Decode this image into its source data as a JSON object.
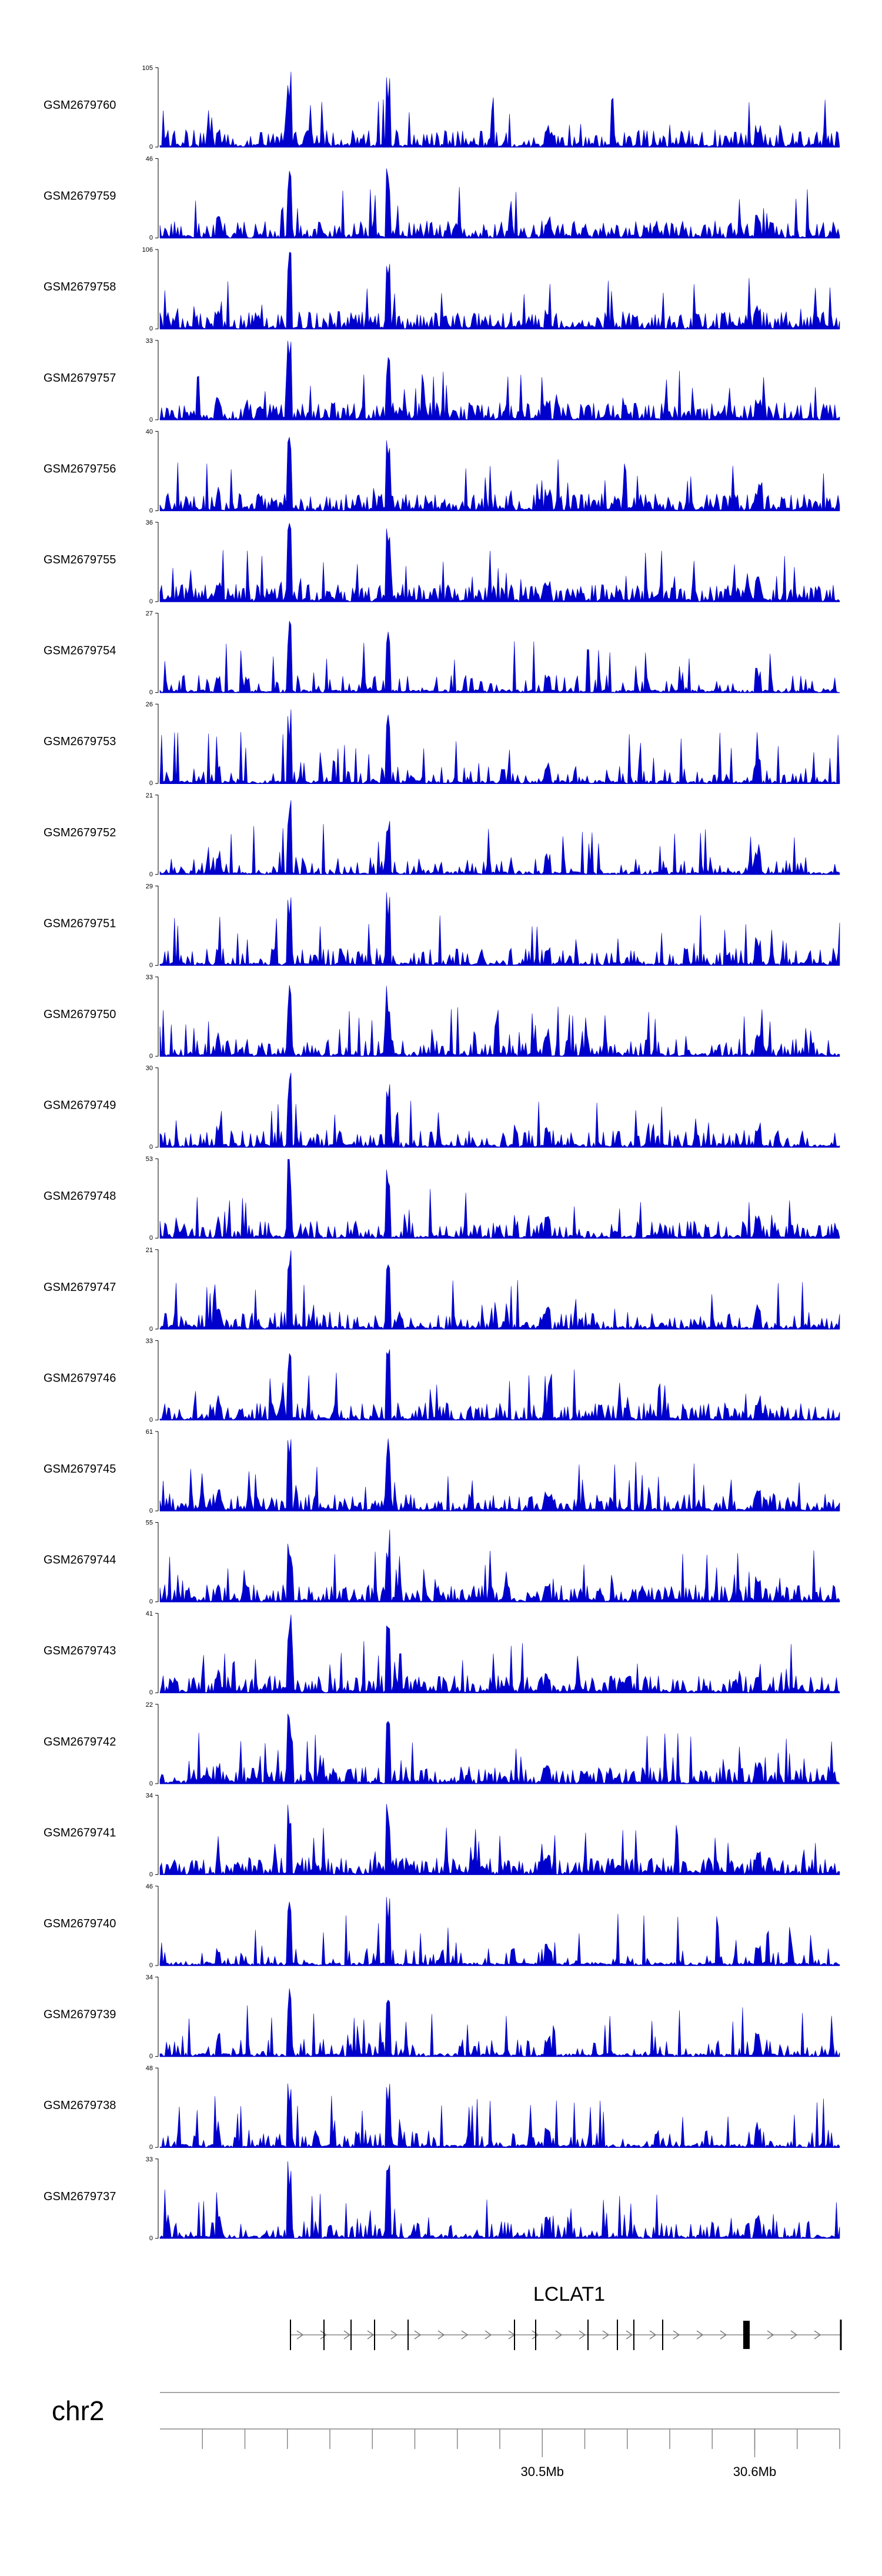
{
  "chart_data": {
    "type": "area",
    "tracks": [
      {
        "name": "GSM2679760",
        "ymax": "105",
        "ymin": "0"
      },
      {
        "name": "GSM2679759",
        "ymax": "46",
        "ymin": "0"
      },
      {
        "name": "GSM2679758",
        "ymax": "106",
        "ymin": "0"
      },
      {
        "name": "GSM2679757",
        "ymax": "33",
        "ymin": "0"
      },
      {
        "name": "GSM2679756",
        "ymax": "40",
        "ymin": "0"
      },
      {
        "name": "GSM2679755",
        "ymax": "36",
        "ymin": "0"
      },
      {
        "name": "GSM2679754",
        "ymax": "27",
        "ymin": "0"
      },
      {
        "name": "GSM2679753",
        "ymax": "26",
        "ymin": "0"
      },
      {
        "name": "GSM2679752",
        "ymax": "21",
        "ymin": "0"
      },
      {
        "name": "GSM2679751",
        "ymax": "29",
        "ymin": "0"
      },
      {
        "name": "GSM2679750",
        "ymax": "33",
        "ymin": "0"
      },
      {
        "name": "GSM2679749",
        "ymax": "30",
        "ymin": "0"
      },
      {
        "name": "GSM2679748",
        "ymax": "53",
        "ymin": "0"
      },
      {
        "name": "GSM2679747",
        "ymax": "21",
        "ymin": "0"
      },
      {
        "name": "GSM2679746",
        "ymax": "33",
        "ymin": "0"
      },
      {
        "name": "GSM2679745",
        "ymax": "61",
        "ymin": "0"
      },
      {
        "name": "GSM2679744",
        "ymax": "55",
        "ymin": "0"
      },
      {
        "name": "GSM2679743",
        "ymax": "41",
        "ymin": "0"
      },
      {
        "name": "GSM2679742",
        "ymax": "22",
        "ymin": "0"
      },
      {
        "name": "GSM2679741",
        "ymax": "34",
        "ymin": "0"
      },
      {
        "name": "GSM2679740",
        "ymax": "46",
        "ymin": "0"
      },
      {
        "name": "GSM2679739",
        "ymax": "34",
        "ymin": "0"
      },
      {
        "name": "GSM2679738",
        "ymax": "48",
        "ymin": "0"
      },
      {
        "name": "GSM2679737",
        "ymax": "33",
        "ymin": "0"
      }
    ],
    "gene": {
      "name": "LCLAT1",
      "strand": "+"
    },
    "chromosome": "chr2",
    "xaxis": {
      "range_mb": [
        30.32,
        30.64
      ],
      "minor_ticks_mb": [
        30.34,
        30.36,
        30.38,
        30.4,
        30.42,
        30.44,
        30.46,
        30.48,
        30.5,
        30.52,
        30.54,
        30.56,
        30.58,
        30.6,
        30.62,
        30.64
      ],
      "labeled_ticks": [
        {
          "value": 30.5,
          "label": "30.5Mb"
        },
        {
          "value": 30.6,
          "label": "30.6Mb"
        }
      ]
    },
    "fill_color": "#0000cc"
  }
}
